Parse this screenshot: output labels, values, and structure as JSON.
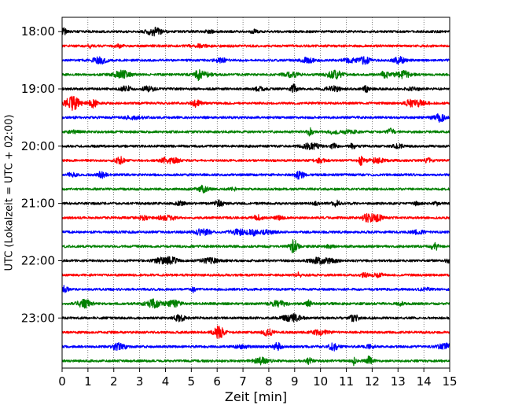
{
  "chart_data": {
    "type": "line",
    "subtype": "helicorder-seismogram",
    "title": "",
    "xlabel": "Zeit  [min]",
    "ylabel": "UTC (Lokalzeit = UTC + 02:00)",
    "xlim": [
      0,
      15
    ],
    "x_ticks": [
      "0",
      "1",
      "2",
      "3",
      "4",
      "5",
      "6",
      "7",
      "8",
      "9",
      "10",
      "11",
      "12",
      "13",
      "14",
      "15"
    ],
    "y_ticks": [
      "18:00",
      "19:00",
      "20:00",
      "21:00",
      "22:00",
      "23:00"
    ],
    "grid_x": true,
    "grid_style": "dotted",
    "trace_start": "18:00",
    "trace_interval_minutes": 15,
    "trace_count": 24,
    "color_cycle": [
      "#000000",
      "#ff0000",
      "#0000ff",
      "#008000"
    ],
    "legend": "none"
  }
}
